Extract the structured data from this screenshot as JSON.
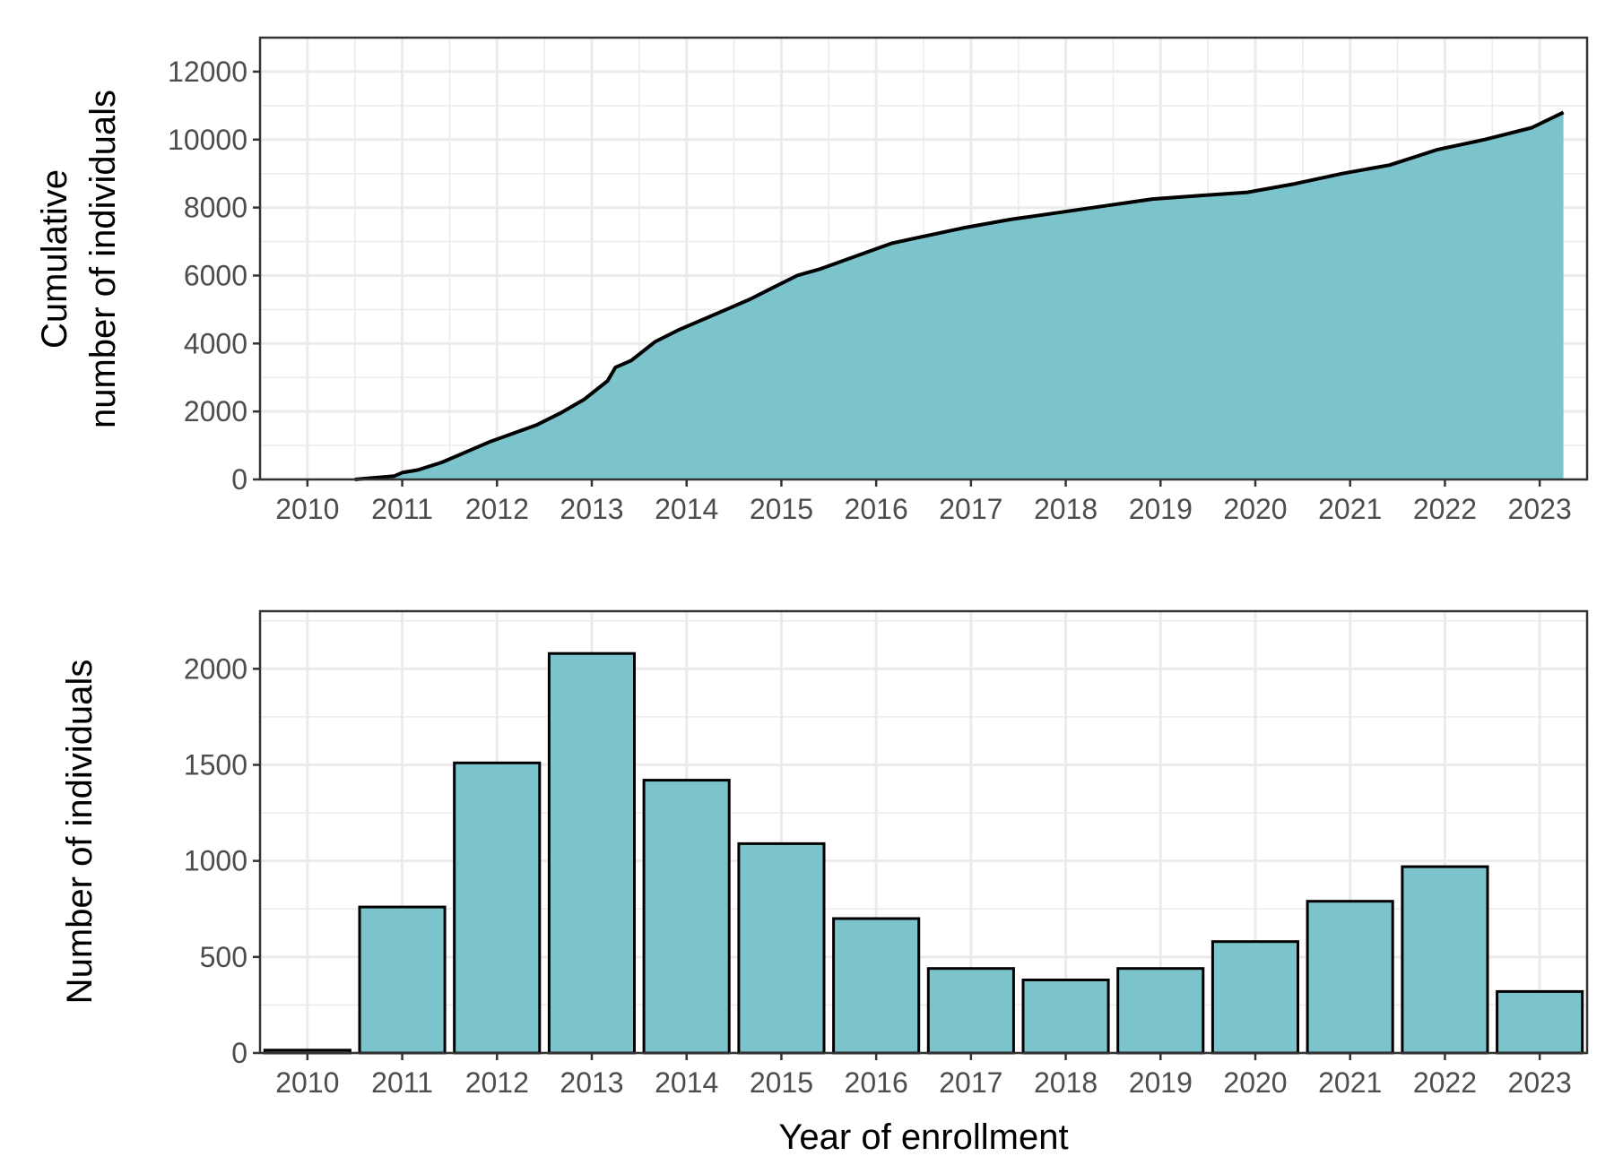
{
  "chart_data": [
    {
      "type": "area",
      "title": "",
      "xlabel": "",
      "ylabel": [
        "Cumulative",
        "number of individuals"
      ],
      "x_tick_labels": [
        "2010",
        "2011",
        "2012",
        "2013",
        "2014",
        "2015",
        "2016",
        "2017",
        "2018",
        "2019",
        "2020",
        "2021",
        "2022",
        "2023"
      ],
      "y_tick_labels": [
        "0",
        "2000",
        "4000",
        "6000",
        "8000",
        "10000",
        "12000"
      ],
      "xlim": [
        "2009-07-01",
        "2023-07-01"
      ],
      "ylim": [
        0,
        13000
      ],
      "grid": true,
      "fill_color": "#7cc4cc",
      "line_color": "#000000",
      "series": [
        {
          "x": [
            "2010-07-01",
            "2010-12-01",
            "2011-01-01",
            "2011-03-01",
            "2011-06-01",
            "2011-09-01",
            "2011-12-01",
            "2012-03-01",
            "2012-06-01",
            "2012-09-01",
            "2012-12-01",
            "2013-03-01",
            "2013-04-01",
            "2013-06-01",
            "2013-09-01",
            "2013-12-01",
            "2014-03-01",
            "2014-06-01",
            "2014-09-01",
            "2014-12-01",
            "2015-03-01",
            "2015-06-01",
            "2015-09-01",
            "2015-12-01",
            "2016-03-01",
            "2016-06-01",
            "2016-09-01",
            "2016-12-01",
            "2017-06-01",
            "2017-12-01",
            "2018-06-01",
            "2018-12-01",
            "2019-06-01",
            "2019-12-01",
            "2020-06-01",
            "2020-12-01",
            "2021-06-01",
            "2021-12-01",
            "2022-06-01",
            "2022-12-01",
            "2023-04-01"
          ],
          "y": [
            0,
            100,
            200,
            280,
            500,
            800,
            1100,
            1350,
            1600,
            1950,
            2350,
            2900,
            3300,
            3500,
            4050,
            4400,
            4700,
            5000,
            5300,
            5650,
            6000,
            6200,
            6450,
            6700,
            6950,
            7100,
            7250,
            7400,
            7650,
            7850,
            8050,
            8250,
            8350,
            8450,
            8700,
            9000,
            9250,
            9700,
            10000,
            10350,
            10800
          ]
        }
      ]
    },
    {
      "type": "bar",
      "title": "",
      "xlabel": "Year of enrollment",
      "ylabel": "Number of individuals",
      "categories": [
        "2010",
        "2011",
        "2012",
        "2013",
        "2014",
        "2015",
        "2016",
        "2017",
        "2018",
        "2019",
        "2020",
        "2021",
        "2022",
        "2023"
      ],
      "y_tick_labels": [
        "0",
        "500",
        "1000",
        "1500",
        "2000"
      ],
      "ylim": [
        0,
        2300
      ],
      "grid": true,
      "fill_color": "#7cc4cc",
      "line_color": "#000000",
      "series": [
        {
          "values": [
            15,
            760,
            1510,
            2080,
            1420,
            1090,
            700,
            440,
            380,
            440,
            580,
            790,
            970,
            320
          ]
        }
      ]
    }
  ]
}
